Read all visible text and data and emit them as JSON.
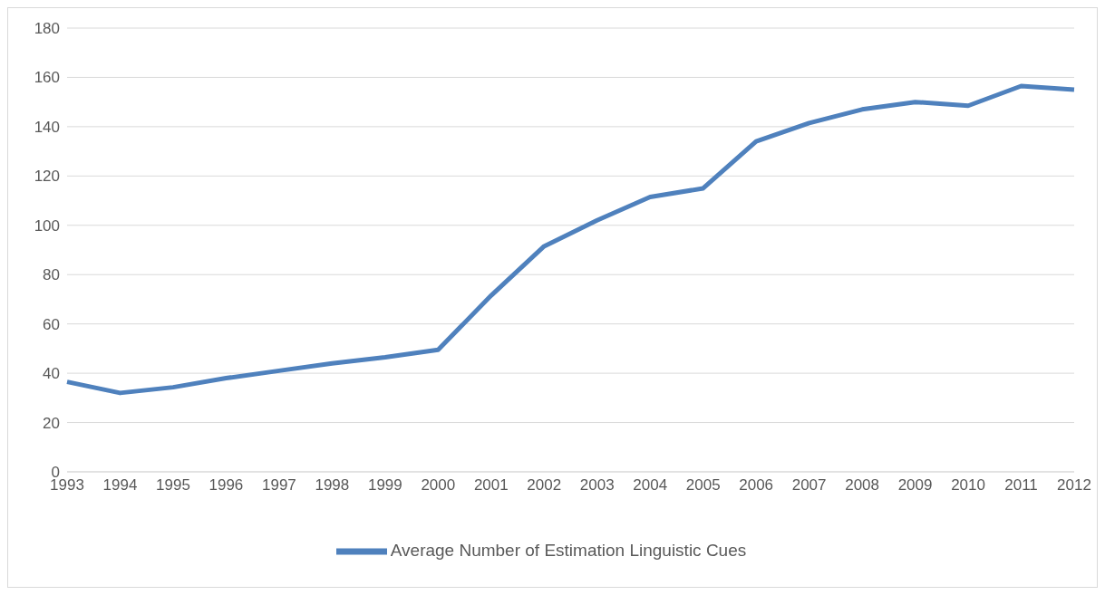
{
  "chart_data": {
    "type": "line",
    "categories": [
      "1993",
      "1994",
      "1995",
      "1996",
      "1997",
      "1998",
      "1999",
      "2000",
      "2001",
      "2002",
      "2003",
      "2004",
      "2005",
      "2006",
      "2007",
      "2008",
      "2009",
      "2010",
      "2011",
      "2012"
    ],
    "series": [
      {
        "name": "Average Number of Estimation Linguistic Cues",
        "color": "#4f81bd",
        "values": [
          36.5,
          32,
          34.3,
          38,
          41,
          44,
          46.5,
          49.5,
          71.5,
          91.5,
          102,
          111.5,
          115,
          134,
          141.5,
          147,
          150,
          148.5,
          156.5,
          155
        ]
      }
    ],
    "ylim": [
      0,
      180
    ],
    "yticks": [
      0,
      20,
      40,
      60,
      80,
      100,
      120,
      140,
      160,
      180
    ],
    "grid": "y",
    "legend": "bottom",
    "marker": "none",
    "line_style": "solid"
  }
}
